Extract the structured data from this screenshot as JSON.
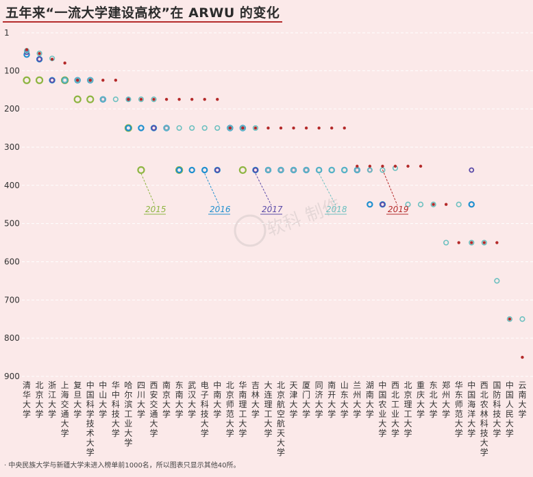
{
  "title": "五年来“一流大学建设高校”在 ARWU 的变化",
  "footnote": "· 中央民族大学与新疆大学未进入榜单前1000名，所以图表只显示其他40所。",
  "watermark": "软科 制作",
  "chart_data": {
    "type": "scatter",
    "title": "五年来“一流大学建设高校”在 ARWU 的变化",
    "y_axis": {
      "reversed": true,
      "range": [
        1,
        900
      ],
      "ticks": [
        "1",
        "100",
        "200",
        "300",
        "400",
        "500",
        "600",
        "700",
        "800",
        "900"
      ]
    },
    "grid": "horizontal dashed",
    "categories": [
      "清华大学",
      "北京大学",
      "浙江大学",
      "上海交通大学",
      "复旦大学",
      "中国科学技术大学",
      "中山大学",
      "华中科技大学",
      "哈尔滨工业大学",
      "四川大学",
      "西安交通大学",
      "南京大学",
      "东南大学",
      "武汉大学",
      "电子科技大学",
      "中南大学",
      "北京师范大学",
      "华南理工大学",
      "吉林大学",
      "大连理工大学",
      "北京航空航天大学",
      "天津大学",
      "厦门大学",
      "同济大学",
      "南开大学",
      "山东大学",
      "兰州大学",
      "湖南大学",
      "中国农业大学",
      "西北工业大学",
      "北京理工大学",
      "重庆大学",
      "东北大学",
      "郑州大学",
      "华东师范大学",
      "中国海洋大学",
      "西北农林科技大学",
      "国防科技大学",
      "中国人民大学",
      "云南大学"
    ],
    "series": [
      {
        "name": "2015",
        "color": "#8db541",
        "values": [
          125,
          125,
          null,
          125,
          175,
          175,
          null,
          null,
          250,
          360,
          null,
          null,
          360,
          null,
          null,
          null,
          null,
          360,
          null,
          null,
          null,
          null,
          null,
          null,
          null,
          null,
          null,
          null,
          null,
          null,
          null,
          null,
          null,
          null,
          null,
          null,
          null,
          null,
          null,
          null
        ]
      },
      {
        "name": "2016",
        "color": "#1f8fcf",
        "values": [
          58,
          70,
          125,
          125,
          125,
          125,
          175,
          null,
          250,
          250,
          250,
          250,
          360,
          360,
          360,
          360,
          250,
          250,
          360,
          360,
          360,
          360,
          360,
          360,
          360,
          360,
          360,
          450,
          450,
          null,
          null,
          null,
          null,
          null,
          null,
          450,
          null,
          null,
          null,
          null
        ]
      },
      {
        "name": "2017",
        "color": "#5a4aa8",
        "values": [
          52,
          70,
          125,
          null,
          125,
          125,
          175,
          null,
          175,
          null,
          250,
          250,
          null,
          null,
          null,
          360,
          250,
          250,
          360,
          360,
          360,
          360,
          360,
          null,
          null,
          null,
          360,
          360,
          450,
          null,
          null,
          null,
          null,
          null,
          null,
          360,
          null,
          null,
          null,
          null
        ]
      },
      {
        "name": "2018",
        "color": "#6cc0c0",
        "values": [
          48,
          55,
          68,
          125,
          125,
          125,
          175,
          175,
          175,
          175,
          175,
          250,
          250,
          250,
          250,
          250,
          250,
          250,
          250,
          360,
          360,
          360,
          360,
          360,
          360,
          360,
          360,
          360,
          360,
          355,
          450,
          450,
          450,
          550,
          450,
          550,
          550,
          650,
          750,
          750
        ]
      },
      {
        "name": "2019",
        "color": "#b42a2a",
        "values": [
          45,
          55,
          70,
          80,
          125,
          125,
          125,
          125,
          175,
          175,
          175,
          175,
          175,
          175,
          175,
          175,
          250,
          250,
          250,
          250,
          250,
          250,
          250,
          250,
          250,
          250,
          350,
          350,
          350,
          350,
          350,
          350,
          450,
          450,
          550,
          550,
          550,
          550,
          750,
          850
        ]
      }
    ]
  }
}
